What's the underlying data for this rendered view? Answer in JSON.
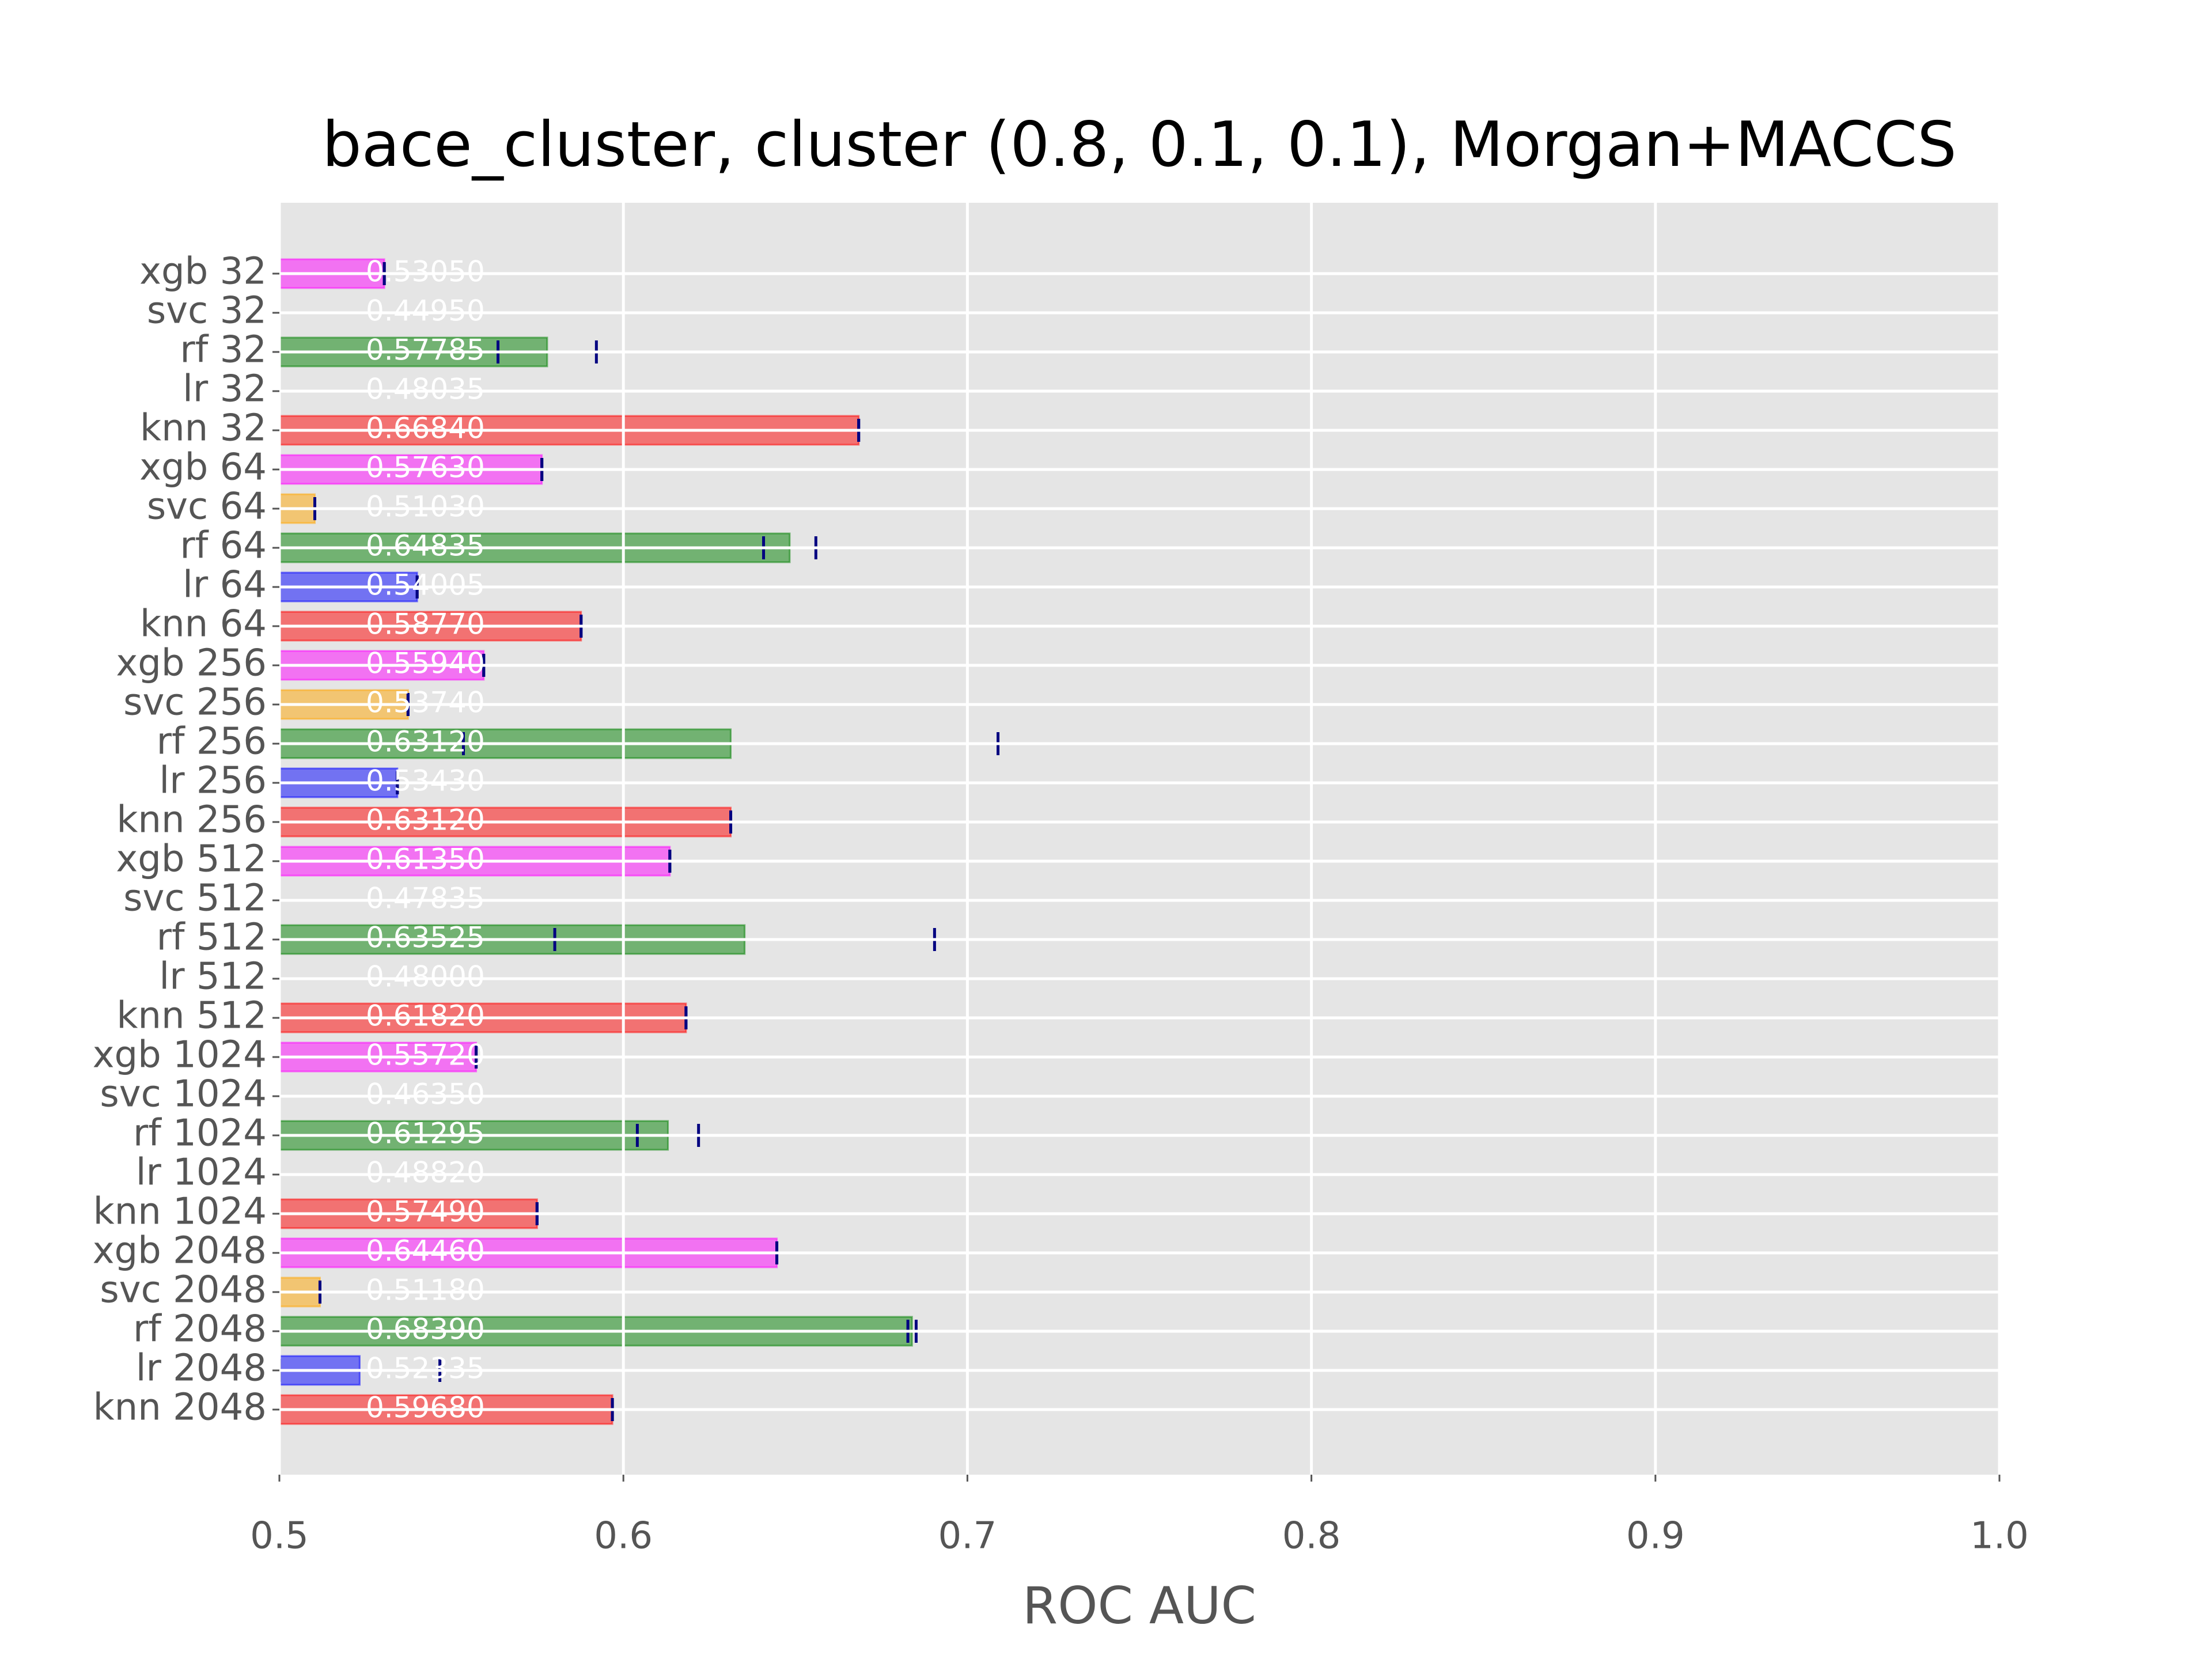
{
  "chart_data": {
    "type": "barh",
    "title": "bace_cluster, cluster (0.8, 0.1, 0.1), Morgan+MACCS",
    "x_label": "ROC AUC",
    "categories": [
      "xgb 32",
      "svc 32",
      "rf 32",
      "lr 32",
      "knn 32",
      "xgb 64",
      "svc 64",
      "rf 64",
      "lr 64",
      "knn 64",
      "xgb 256",
      "svc 256",
      "rf 256",
      "lr 256",
      "knn 256",
      "xgb 512",
      "svc 512",
      "rf 512",
      "lr 512",
      "knn 512",
      "xgb 1024",
      "svc 1024",
      "rf 1024",
      "lr 1024",
      "knn 1024",
      "xgb 2048",
      "svc 2048",
      "rf 2048",
      "lr 2048",
      "knn 2048"
    ],
    "values": [
      0.5305,
      0.4495,
      0.57785,
      0.48035,
      0.6684,
      0.5763,
      0.5103,
      0.64835,
      0.54005,
      0.5877,
      0.5594,
      0.5374,
      0.6312,
      0.5343,
      0.6312,
      0.6135,
      0.47835,
      0.63525,
      0.48,
      0.6182,
      0.5572,
      0.4635,
      0.61295,
      0.4882,
      0.5749,
      0.6446,
      0.5118,
      0.6839,
      0.52335,
      0.5968
    ],
    "value_labels": [
      "0.53050",
      "0.44950",
      "0.57785",
      "0.48035",
      "0.66840",
      "0.57630",
      "0.51030",
      "0.64835",
      "0.54005",
      "0.58770",
      "0.55940",
      "0.53740",
      "0.63120",
      "0.53430",
      "0.63120",
      "0.61350",
      "0.47835",
      "0.63525",
      "0.48000",
      "0.61820",
      "0.55720",
      "0.46350",
      "0.61295",
      "0.48820",
      "0.57490",
      "0.64460",
      "0.51180",
      "0.68390",
      "0.52335",
      "0.59680"
    ],
    "errors": [
      0,
      0,
      0.0143,
      0,
      0,
      0,
      0,
      0.0076,
      0,
      0,
      0,
      0,
      0.0777,
      0,
      0,
      0,
      0,
      0.0552,
      0,
      0,
      0,
      0,
      0.0089,
      0,
      0,
      0,
      0,
      0.0012,
      0.0233,
      0
    ],
    "colors": [
      "#ff00ff",
      "#ffa500",
      "#008000",
      "#0000ff",
      "#ff0000",
      "#ff00ff",
      "#ffa500",
      "#008000",
      "#0000ff",
      "#ff0000",
      "#ff00ff",
      "#ffa500",
      "#008000",
      "#0000ff",
      "#ff0000",
      "#ff00ff",
      "#ffa500",
      "#008000",
      "#0000ff",
      "#ff0000",
      "#ff00ff",
      "#ffa500",
      "#008000",
      "#0000ff",
      "#ff0000",
      "#ff00ff",
      "#ffa500",
      "#008000",
      "#0000ff",
      "#ff0000"
    ],
    "error_color": "#000080",
    "xlim": [
      0.5,
      1
    ],
    "xticks": [
      0.5,
      0.6,
      0.7,
      0.8,
      0.9,
      {
        "value": 1,
        "label": "1.0"
      }
    ],
    "grid": true
  }
}
